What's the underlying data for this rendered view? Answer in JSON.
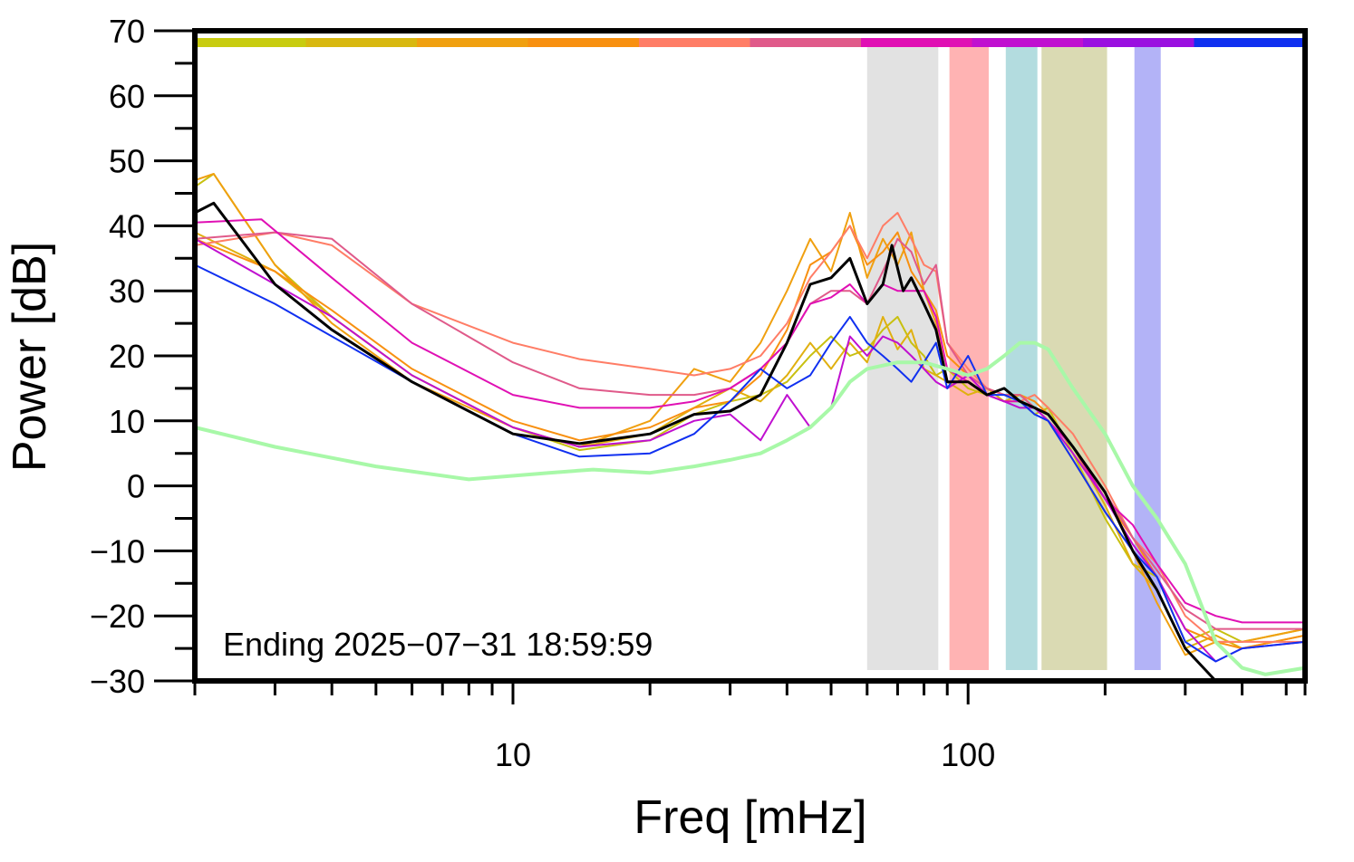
{
  "chart_data": {
    "type": "line",
    "title": "",
    "xlabel": "Freq [mHz]",
    "ylabel": "Power [dB]",
    "annotation": "Ending 2025−07−31 18:59:59",
    "xscale": "log",
    "xlim": [
      2,
      550
    ],
    "ylim": [
      -30,
      70
    ],
    "x_tick_labels": [
      {
        "value": 10,
        "label": "10"
      },
      {
        "value": 100,
        "label": "100"
      }
    ],
    "y_tick_labels": [
      {
        "value": 70,
        "label": "70"
      },
      {
        "value": 60,
        "label": "60"
      },
      {
        "value": 50,
        "label": "50"
      },
      {
        "value": 40,
        "label": "40"
      },
      {
        "value": 30,
        "label": "30"
      },
      {
        "value": 20,
        "label": "20"
      },
      {
        "value": 10,
        "label": "10"
      },
      {
        "value": 0,
        "label": "0"
      },
      {
        "value": -10,
        "label": "−10"
      },
      {
        "value": -20,
        "label": "−20"
      },
      {
        "value": -30,
        "label": "−30"
      }
    ],
    "grid": false,
    "legend": "none",
    "bands": [
      {
        "x0": 60,
        "x1": 86,
        "color": "#e2e2e2"
      },
      {
        "x0": 91,
        "x1": 111,
        "color": "#ffb3b3"
      },
      {
        "x0": 121,
        "x1": 142,
        "color": "#b3dcdf"
      },
      {
        "x0": 145,
        "x1": 202,
        "color": "#dadab3"
      },
      {
        "x0": 232,
        "x1": 265,
        "color": "#b3b3f7"
      }
    ],
    "color_bar_segments": [
      "#c8cc10",
      "#d8b810",
      "#f0a010",
      "#f89010",
      "#ff7d66",
      "#e05a8a",
      "#e010b4",
      "#c010d0",
      "#9a10e0",
      "#1030f0"
    ],
    "series": [
      {
        "color": "#c8c010",
        "width": 2,
        "x": [
          2,
          2.2,
          3,
          4,
          6,
          10,
          14,
          20,
          25,
          30,
          35,
          40,
          45,
          50,
          55,
          60,
          65,
          70,
          75,
          80,
          85,
          90,
          100,
          110,
          120,
          130,
          140,
          150,
          170,
          200,
          230,
          260,
          300,
          350,
          400,
          550
        ],
        "y": [
          46,
          48,
          34,
          26,
          17,
          9,
          5.5,
          7,
          11,
          13,
          14,
          16,
          20,
          23,
          20,
          21,
          24,
          26,
          22,
          20,
          17,
          18,
          15,
          14,
          15,
          13,
          11,
          12,
          5,
          -5,
          -12,
          -14,
          -24,
          -22,
          -24,
          -22
        ]
      },
      {
        "color": "#e0b010",
        "width": 2,
        "x": [
          2,
          3,
          4,
          6,
          10,
          14,
          20,
          25,
          30,
          35,
          40,
          45,
          50,
          55,
          60,
          65,
          70,
          75,
          80,
          85,
          90,
          100,
          110,
          120,
          130,
          140,
          150,
          170,
          200,
          230,
          260,
          300,
          350,
          400,
          550
        ],
        "y": [
          39,
          33,
          26,
          17,
          9,
          6,
          8,
          12,
          15,
          13,
          17,
          22,
          18,
          22,
          19,
          26,
          21,
          24,
          18,
          17,
          16,
          14,
          15,
          13,
          14,
          12,
          11,
          6,
          -3,
          -12,
          -16,
          -25,
          -23,
          -25,
          -23
        ]
      },
      {
        "color": "#f0a010",
        "width": 2,
        "x": [
          2,
          2.2,
          3,
          4,
          6,
          10,
          14,
          20,
          25,
          30,
          35,
          40,
          45,
          50,
          55,
          60,
          65,
          70,
          75,
          80,
          85,
          90,
          100,
          110,
          120,
          130,
          140,
          150,
          170,
          200,
          230,
          260,
          300,
          350,
          400,
          550
        ],
        "y": [
          47,
          48,
          34,
          25,
          16,
          9,
          6,
          10,
          18,
          16,
          22,
          30,
          38,
          33,
          42,
          32,
          38,
          34,
          39,
          30,
          25,
          18,
          16,
          14,
          13,
          13,
          12,
          10,
          4,
          -4,
          -10,
          -18,
          -26,
          -24,
          -24,
          -22
        ]
      },
      {
        "color": "#f89010",
        "width": 2,
        "x": [
          2,
          3,
          4,
          6,
          10,
          14,
          20,
          25,
          30,
          35,
          40,
          45,
          50,
          55,
          60,
          65,
          70,
          75,
          80,
          85,
          90,
          100,
          110,
          120,
          130,
          140,
          150,
          170,
          200,
          230,
          260,
          300,
          350,
          400,
          550
        ],
        "y": [
          38,
          33,
          27,
          18,
          10,
          7,
          9,
          12,
          13,
          17,
          24,
          34,
          36,
          40,
          34,
          36,
          39,
          33,
          30,
          27,
          20,
          17,
          15,
          14,
          14,
          13,
          11,
          6,
          -2,
          -8,
          -14,
          -22,
          -24,
          -25,
          -23
        ]
      },
      {
        "color": "#ff7d66",
        "width": 2,
        "x": [
          2,
          3,
          4,
          6,
          10,
          14,
          20,
          25,
          30,
          35,
          40,
          45,
          50,
          55,
          60,
          65,
          70,
          75,
          80,
          85,
          90,
          100,
          110,
          120,
          130,
          140,
          150,
          170,
          200,
          230,
          260,
          300,
          350,
          400,
          550
        ],
        "y": [
          37,
          39,
          37,
          28,
          22,
          19.5,
          18,
          17,
          18,
          20,
          25,
          32,
          36,
          40,
          35,
          40,
          42,
          38,
          34,
          33,
          22,
          18,
          15,
          14,
          13,
          14,
          12,
          8,
          0,
          -8,
          -12,
          -20,
          -24,
          -24,
          -24
        ]
      },
      {
        "color": "#e05a8a",
        "width": 2,
        "x": [
          2,
          3,
          4,
          6,
          10,
          14,
          20,
          25,
          30,
          35,
          40,
          45,
          50,
          55,
          60,
          65,
          70,
          75,
          80,
          85,
          90,
          100,
          110,
          120,
          130,
          140,
          150,
          170,
          200,
          230,
          260,
          300,
          350,
          400,
          550
        ],
        "y": [
          38,
          39,
          38,
          28,
          19,
          15,
          14,
          14,
          15,
          18,
          22,
          28,
          30,
          30,
          28,
          33,
          38,
          36,
          31,
          34,
          22,
          17,
          15,
          14,
          14,
          12,
          11,
          6,
          -1,
          -8,
          -13,
          -19,
          -22,
          -22,
          -22
        ]
      },
      {
        "color": "#e010b4",
        "width": 2,
        "x": [
          2,
          2.8,
          4,
          6,
          10,
          14,
          20,
          25,
          30,
          35,
          40,
          45,
          50,
          55,
          60,
          65,
          70,
          75,
          80,
          85,
          90,
          100,
          110,
          120,
          130,
          140,
          150,
          170,
          200,
          230,
          260,
          300,
          350,
          400,
          550
        ],
        "y": [
          40.5,
          41,
          32,
          22,
          14,
          12,
          12,
          13,
          15,
          18,
          22,
          28,
          29,
          31,
          28,
          31,
          30,
          30,
          30,
          26,
          18,
          16,
          14,
          13,
          13,
          12,
          10,
          6,
          -2,
          -6,
          -12,
          -18,
          -20,
          -21,
          -21
        ]
      },
      {
        "color": "#c010d0",
        "width": 2,
        "x": [
          2,
          3,
          4,
          6,
          10,
          14,
          20,
          25,
          30,
          35,
          40,
          45,
          50,
          55,
          60,
          65,
          70,
          75,
          80,
          85,
          90,
          100,
          110,
          120,
          130,
          140,
          150,
          170,
          200,
          230,
          260,
          300,
          350,
          400,
          550
        ],
        "y": [
          38,
          31,
          26,
          17,
          9,
          6,
          7,
          10,
          11,
          7,
          14,
          9,
          12,
          23,
          20,
          23,
          22,
          20,
          18,
          16,
          15,
          17,
          14,
          13,
          12,
          12,
          10,
          5,
          -2,
          -9,
          -14,
          -22,
          -27,
          -25,
          -24
        ]
      },
      {
        "color": "#1030f0",
        "width": 2,
        "x": [
          2,
          3,
          4,
          6,
          10,
          14,
          20,
          25,
          30,
          35,
          40,
          45,
          50,
          55,
          60,
          65,
          70,
          75,
          80,
          85,
          90,
          100,
          110,
          120,
          130,
          140,
          150,
          170,
          200,
          230,
          260,
          300,
          350,
          400,
          550
        ],
        "y": [
          34,
          28,
          23,
          16,
          8,
          4.5,
          5,
          8,
          13,
          18,
          15,
          17,
          22,
          26,
          22,
          20,
          18,
          16,
          19,
          22,
          15,
          20,
          14,
          14,
          13,
          11,
          10,
          4,
          -4,
          -10,
          -14,
          -24,
          -27,
          -25,
          -24
        ]
      },
      {
        "color": "#000000",
        "width": 3,
        "x": [
          2,
          2.2,
          3,
          4,
          6,
          10,
          14,
          20,
          25,
          30,
          35,
          40,
          45,
          50,
          55,
          60,
          65,
          68,
          72,
          75,
          80,
          85,
          90,
          100,
          110,
          120,
          130,
          140,
          150,
          170,
          200,
          230,
          260,
          300,
          350,
          400,
          550
        ],
        "y": [
          42,
          43.5,
          31,
          24,
          16,
          8,
          6.5,
          8,
          11,
          11.5,
          14,
          22,
          31,
          32,
          35,
          28,
          31,
          37,
          30,
          32,
          28,
          24,
          16,
          16,
          14,
          15,
          13,
          12,
          11,
          6,
          -1,
          -10,
          -16,
          -25,
          -30,
          -30,
          -30
        ]
      },
      {
        "color": "#a8f8a8",
        "width": 4,
        "x": [
          2,
          3,
          5,
          8,
          12,
          15,
          20,
          25,
          30,
          35,
          40,
          45,
          50,
          55,
          60,
          70,
          80,
          90,
          100,
          110,
          120,
          130,
          140,
          150,
          170,
          200,
          230,
          260,
          300,
          350,
          400,
          450,
          550
        ],
        "y": [
          9,
          6,
          3,
          1,
          2,
          2.5,
          2,
          3,
          4,
          5,
          7,
          9,
          12,
          16,
          18,
          19,
          19,
          18,
          17,
          18,
          20,
          22,
          22,
          21,
          15,
          8,
          0,
          -5,
          -12,
          -24,
          -28,
          -29,
          -28
        ]
      }
    ]
  }
}
